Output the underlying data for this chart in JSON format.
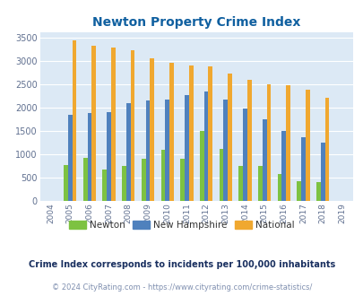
{
  "title": "Newton Property Crime Index",
  "years": [
    2004,
    2005,
    2006,
    2007,
    2008,
    2009,
    2010,
    2011,
    2012,
    2013,
    2014,
    2015,
    2016,
    2017,
    2018,
    2019
  ],
  "newton": [
    0,
    775,
    930,
    675,
    750,
    900,
    1100,
    900,
    1500,
    1125,
    750,
    750,
    575,
    425,
    400,
    0
  ],
  "new_hampshire": [
    0,
    1850,
    1875,
    1900,
    2100,
    2150,
    2175,
    2275,
    2350,
    2175,
    1975,
    1750,
    1500,
    1375,
    1250,
    0
  ],
  "national": [
    0,
    3425,
    3325,
    3275,
    3225,
    3050,
    2950,
    2900,
    2875,
    2725,
    2600,
    2500,
    2475,
    2375,
    2200,
    0
  ],
  "newton_color": "#7dc242",
  "nh_color": "#4f81bd",
  "national_color": "#f0a830",
  "bg_color": "#dce9f5",
  "ylabel_values": [
    0,
    500,
    1000,
    1500,
    2000,
    2500,
    3000,
    3500
  ],
  "ylim": [
    0,
    3600
  ],
  "subtitle": "Crime Index corresponds to incidents per 100,000 inhabitants",
  "footer": "© 2024 CityRating.com - https://www.cityrating.com/crime-statistics/",
  "title_color": "#1060a0",
  "subtitle_color": "#1a3060",
  "footer_color": "#8090b0",
  "bar_width": 0.22,
  "figsize": [
    4.06,
    3.3
  ],
  "dpi": 100
}
